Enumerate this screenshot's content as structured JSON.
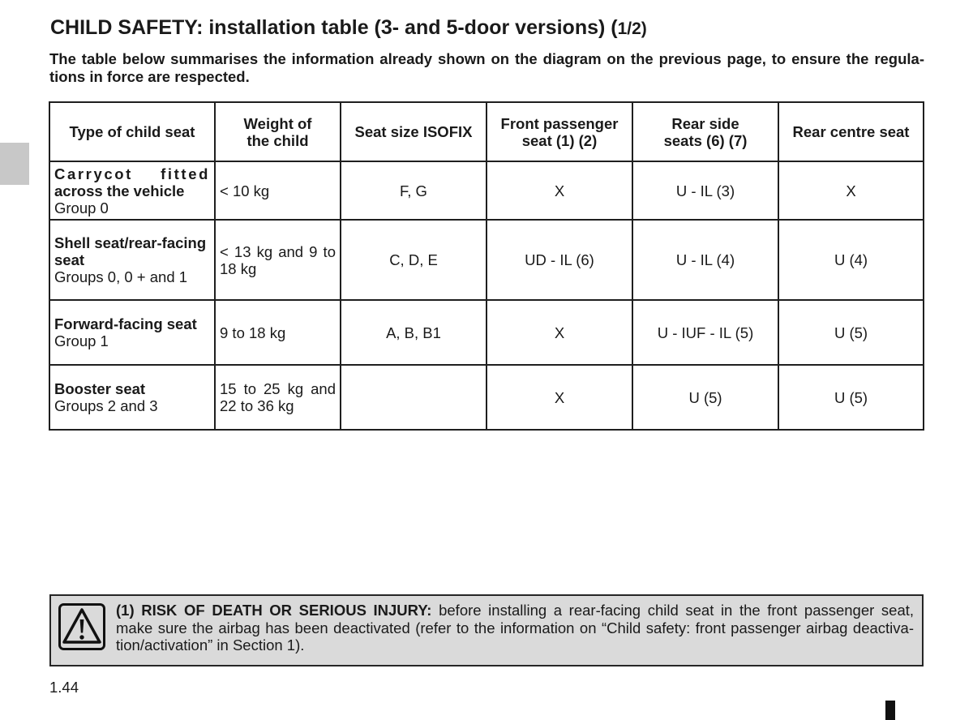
{
  "colors": {
    "text": "#1a1a1a",
    "border": "#1f1f1f",
    "section_tab": "#c8c8c8",
    "warning_background": "#dadada",
    "warning_border": "#262626"
  },
  "header": {
    "title": "CHILD SAFETY: installation table (3- and 5-door versions) (",
    "title_page": "1/2)",
    "intro_lines": [
      "The table below summarises the information already shown on the diagram on the previous page, to ensure the regula-",
      "tions in force are respected."
    ]
  },
  "table": {
    "columns": [
      "Type of child seat",
      "Weight of\nthe child",
      "Seat size ISOFIX",
      "Front passenger\nseat (1) (2)",
      "Rear side\nseats (6) (7)",
      "Rear centre seat"
    ],
    "rows": [
      {
        "type_lines": [
          "Carrycot fitted",
          "across the vehicle"
        ],
        "group": "Group 0",
        "weight": "< 10 kg",
        "isofix": "F, G",
        "front_passenger": "X",
        "rear_side": "U - IL (3)",
        "rear_centre": "X"
      },
      {
        "type_lines": [
          "Shell seat/rear-facing",
          "seat"
        ],
        "group": "Groups 0, 0 + and 1",
        "weight": "< 13 kg and 9 to 18 kg",
        "isofix": "C, D, E",
        "front_passenger": "UD - IL (6)",
        "rear_side": "U - IL (4)",
        "rear_centre": "U (4)"
      },
      {
        "type_lines": [
          "Forward-facing seat"
        ],
        "group": "Group 1",
        "weight": "9 to 18 kg",
        "isofix": "A, B, B1",
        "front_passenger": "X",
        "rear_side": "U - IUF - IL (5)",
        "rear_centre": "U (5)"
      },
      {
        "type_lines": [
          "Booster seat"
        ],
        "group": "Groups 2 and 3",
        "weight": "15 to 25 kg and 22 to 36 kg",
        "isofix": "",
        "front_passenger": "X",
        "rear_side": "U (5)",
        "rear_centre": "U (5)"
      }
    ]
  },
  "warning": {
    "icon": "warning-triangle-icon",
    "label": "(1) RISK OF DEATH OR SERIOUS INJURY:",
    "lines": [
      "before installing a rear-facing child seat in the front passenger seat,",
      "make sure the airbag has been deactivated (refer to the information on “Child safety: front passenger airbag deactiva-",
      "tion/activation” in Section 1)."
    ]
  },
  "footer": {
    "page_number": "1.44"
  }
}
